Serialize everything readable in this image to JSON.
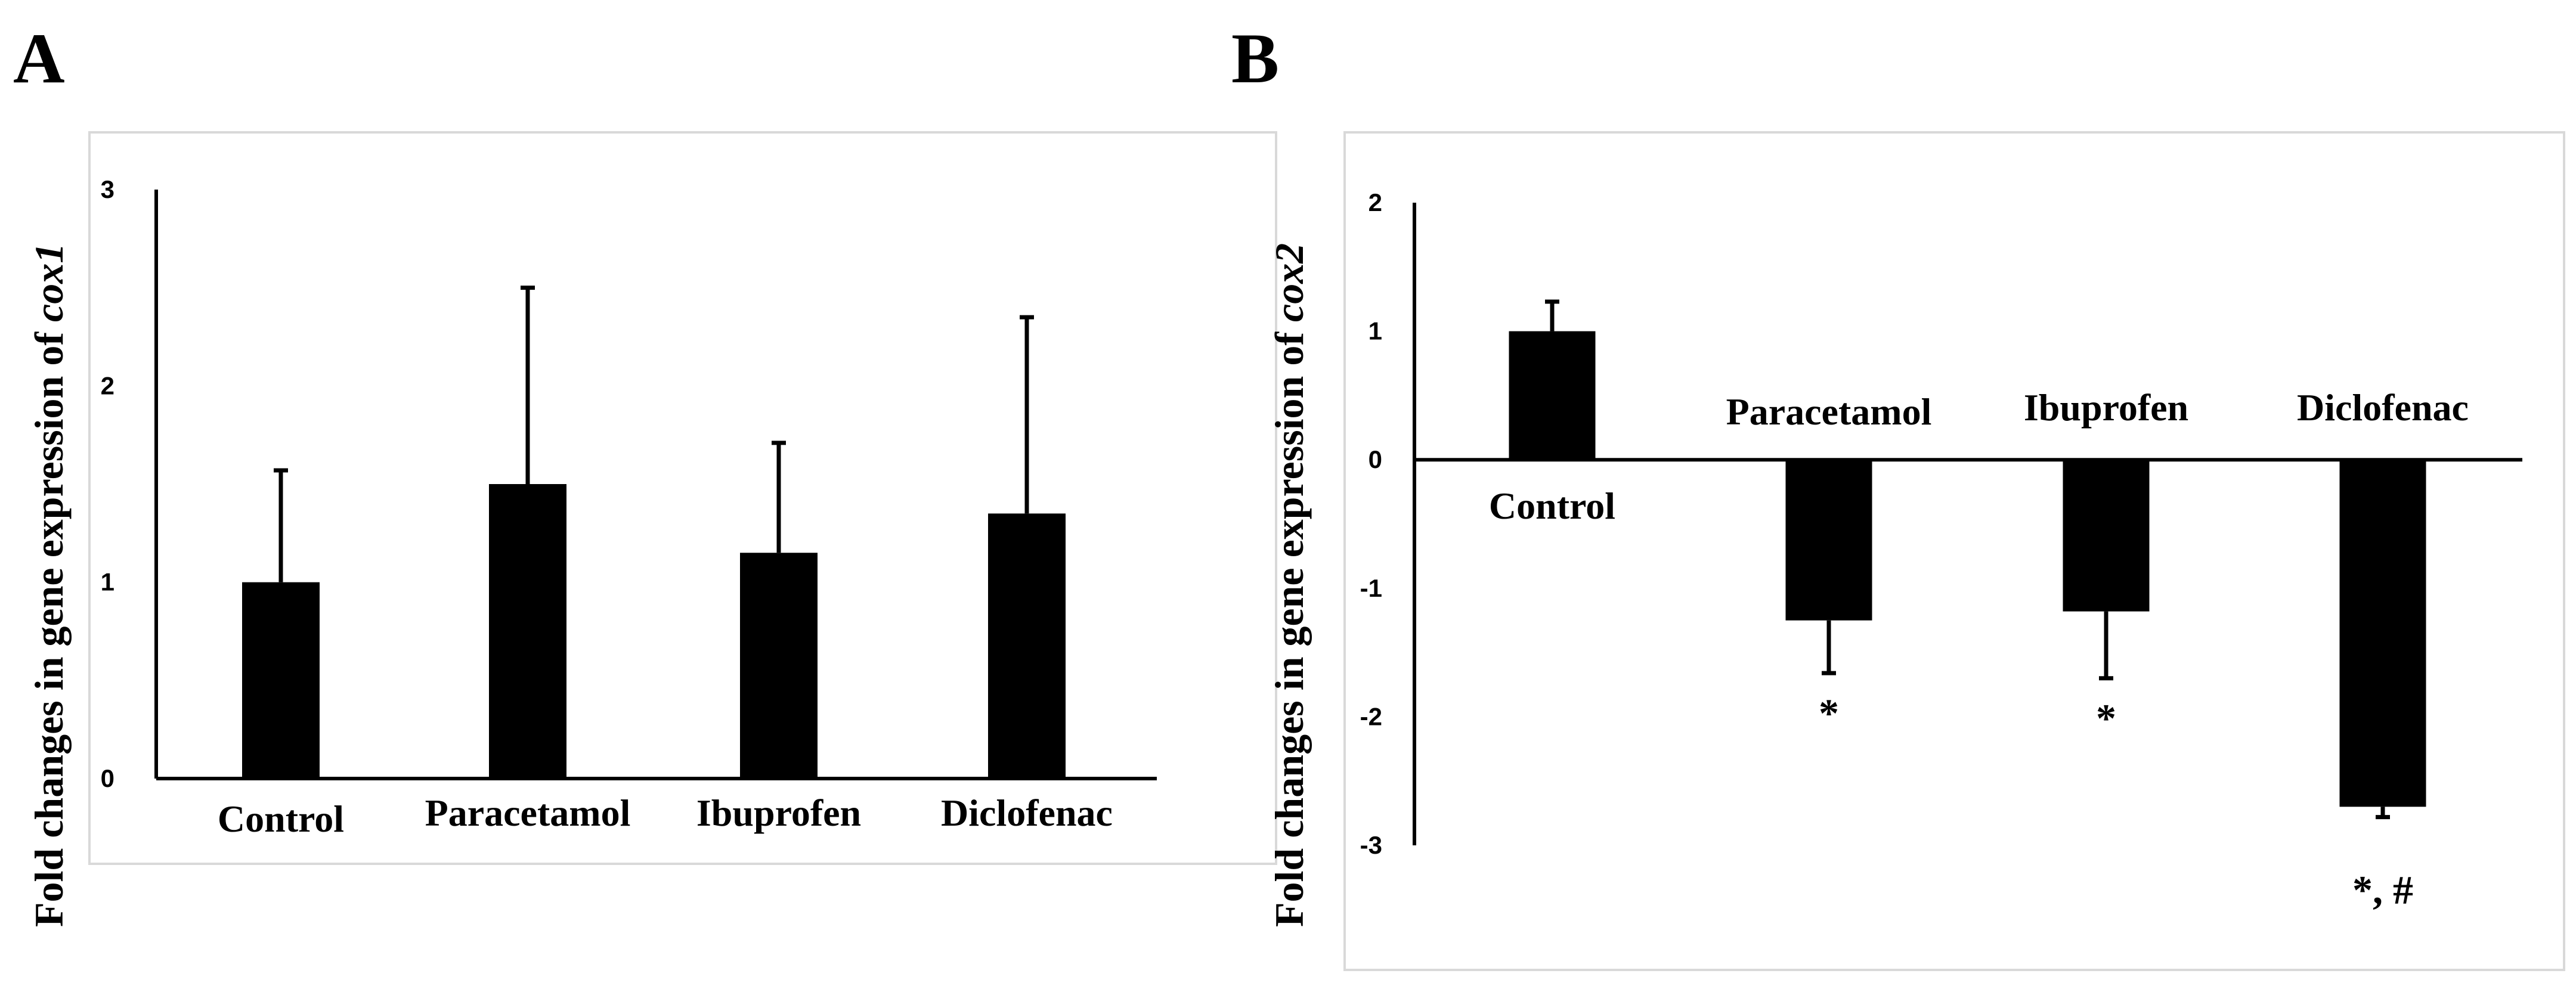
{
  "panels": [
    {
      "letter": "A",
      "ylabel_prefix": "Fold changes in gene expression of ",
      "ylabel_gene": "cox1",
      "frame_color": "#d9d9d9"
    },
    {
      "letter": "B",
      "ylabel_prefix": "Fold changes in gene expression of ",
      "ylabel_gene": "cox2",
      "frame_color": "#d9d9d9"
    }
  ],
  "chart_data": [
    {
      "type": "bar",
      "title": "",
      "ylabel": "Fold changes in gene expression of cox1",
      "xlabel": "",
      "categories": [
        "Control",
        "Paracetamol",
        "Ibuprofen",
        "Diclofenac"
      ],
      "values": [
        1.0,
        1.5,
        1.15,
        1.35
      ],
      "errors": [
        0.57,
        1.0,
        0.56,
        1.0
      ],
      "error_direction": "up",
      "ylim": [
        0,
        3
      ],
      "yticks": [
        "0",
        "1",
        "2",
        "3"
      ],
      "annotations": [
        "",
        "",
        "",
        ""
      ],
      "bar_color": "#000000"
    },
    {
      "type": "bar",
      "title": "",
      "ylabel": "Fold changes in gene expression of cox2",
      "xlabel": "",
      "categories": [
        "Control",
        "Paracetamol",
        "Ibuprofen",
        "Diclofenac"
      ],
      "values": [
        1.0,
        -1.25,
        -1.18,
        -2.7
      ],
      "errors": [
        0.23,
        0.41,
        0.52,
        0.08
      ],
      "error_direction": "away",
      "ylim": [
        -3,
        2
      ],
      "yticks": [
        "-3",
        "-2",
        "-1",
        "0",
        "1",
        "2"
      ],
      "annotations": [
        "",
        "*",
        "*",
        "*, #"
      ],
      "bar_color": "#000000"
    }
  ]
}
